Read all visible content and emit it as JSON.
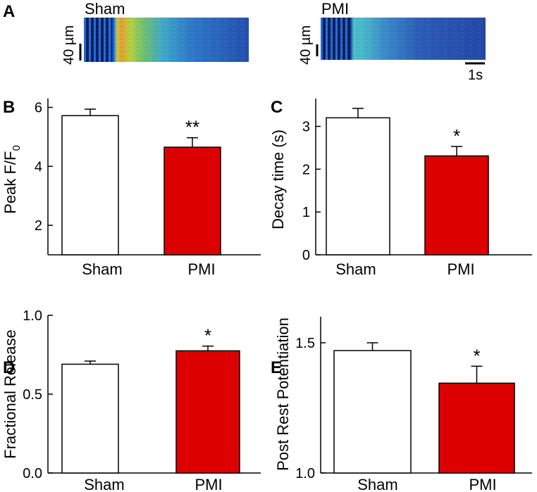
{
  "panel_a": {
    "letter": "A",
    "images": [
      {
        "label": "Sham",
        "scale_label": "40 µm"
      },
      {
        "label": "PMI",
        "scale_label": "40 µm",
        "time_label": "1s"
      }
    ]
  },
  "colors": {
    "sham": "#ffffff",
    "pmi": "#dd0000",
    "axis": "#000000"
  },
  "chart_data": [
    {
      "type": "bar",
      "panel": "B",
      "categories": [
        "Sham",
        "PMI"
      ],
      "values": [
        5.72,
        4.65
      ],
      "errors": [
        0.22,
        0.32
      ],
      "ylabel_main": "Peak F/F",
      "ylabel_sub": "0",
      "ylim": [
        1.0,
        6.3
      ],
      "yticks": [
        2,
        4,
        6
      ],
      "ytick_labels": [
        "2",
        "4",
        "6"
      ],
      "annotations": [
        "",
        "**"
      ]
    },
    {
      "type": "bar",
      "panel": "C",
      "categories": [
        "Sham",
        "PMI"
      ],
      "values": [
        3.2,
        2.31
      ],
      "errors": [
        0.22,
        0.22
      ],
      "ylabel_main": "Decay time (s)",
      "ylabel_sub": "",
      "ylim": [
        0,
        3.65
      ],
      "yticks": [
        0,
        1,
        2,
        3
      ],
      "ytick_labels": [
        "0",
        "1",
        "2",
        "3"
      ],
      "annotations": [
        "",
        "*"
      ]
    },
    {
      "type": "bar",
      "panel": "D",
      "categories": [
        "Sham",
        "PMI"
      ],
      "values": [
        0.69,
        0.775
      ],
      "errors": [
        0.02,
        0.03
      ],
      "ylabel_main": "Fractional Release",
      "ylabel_sub": "",
      "ylim": [
        0,
        1.0
      ],
      "yticks": [
        0,
        0.5,
        1.0
      ],
      "ytick_labels": [
        "0.0",
        "0.5",
        "1.0"
      ],
      "annotations": [
        "",
        "*"
      ]
    },
    {
      "type": "bar",
      "panel": "E",
      "categories": [
        "Sham",
        "PMI"
      ],
      "values": [
        1.47,
        1.345
      ],
      "errors": [
        0.03,
        0.065
      ],
      "ylabel_main": "Post Rest Potentiation",
      "ylabel_sub": "",
      "ylim": [
        1.0,
        1.6
      ],
      "yticks": [
        1.0,
        1.5
      ],
      "ytick_labels": [
        "1.0",
        "1.5"
      ],
      "annotations": [
        "",
        "*"
      ]
    }
  ]
}
